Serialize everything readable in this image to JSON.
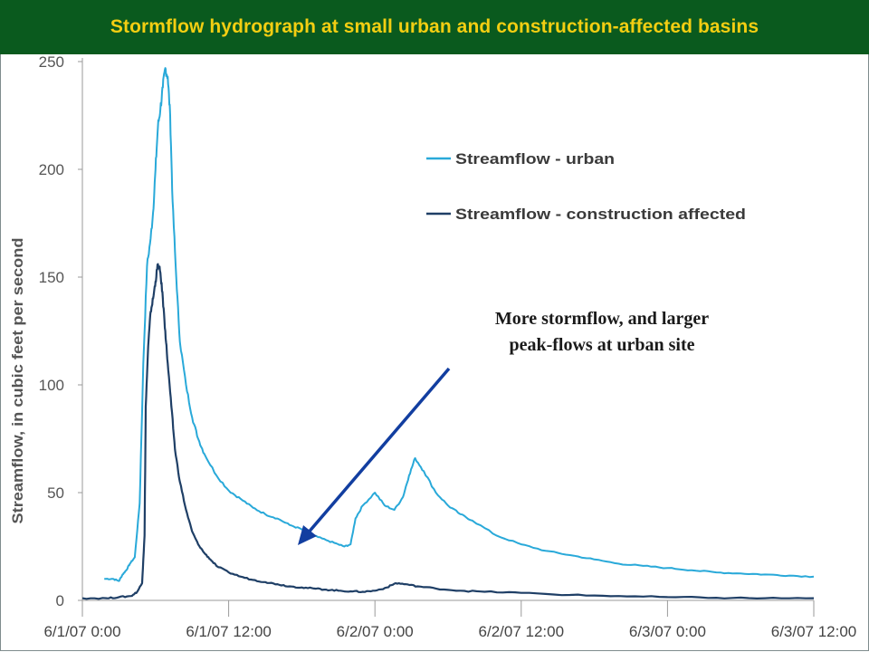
{
  "banner": {
    "title": "Stormflow hydrograph at small urban and construction-affected basins"
  },
  "colors": {
    "banner_bg": "#0a5a1e",
    "banner_text": "#f3ce12",
    "urban": "#29a9d9",
    "construction": "#1f3f66",
    "arrow": "#123ea0"
  },
  "annotation": {
    "line1": "More stormflow, and larger",
    "line2": "peak-flows at urban site"
  },
  "chart_data": {
    "type": "line",
    "title": "",
    "ylabel": "Streamflow, in cubic feet per second",
    "xlabel": "",
    "ylim": [
      0,
      250
    ],
    "yticks": [
      0,
      50,
      100,
      150,
      200,
      250
    ],
    "x_unit": "hours",
    "xlim": [
      0,
      60
    ],
    "xticks": [
      0,
      12,
      24,
      36,
      48,
      60
    ],
    "xtick_labels": [
      "6/1/07 0:00",
      "6/1/07 12:00",
      "6/2/07 0:00",
      "6/2/07 12:00",
      "6/3/07 0:00",
      "6/3/07 12:00"
    ],
    "grid": false,
    "legend_position": "top-right",
    "series": [
      {
        "name": "Streamflow - urban",
        "color": "#29a9d9",
        "x": [
          1.8,
          2.5,
          3.0,
          3.3,
          3.6,
          3.9,
          4.3,
          4.7,
          5.0,
          5.3,
          5.6,
          5.8,
          6.0,
          6.2,
          6.4,
          6.6,
          6.8,
          7.0,
          7.2,
          7.4,
          7.7,
          8.0,
          8.5,
          9.0,
          9.5,
          10,
          11,
          12,
          13,
          14,
          15,
          16,
          17,
          18,
          18.6,
          19,
          20,
          21,
          21.5,
          22,
          22.4,
          23,
          24,
          24.8,
          25.6,
          26.3,
          26.8,
          27.3,
          28,
          29,
          30,
          31,
          32,
          34,
          36,
          38,
          40,
          42,
          44,
          46,
          48,
          50,
          52,
          54,
          56,
          58,
          60
        ],
        "values": [
          10,
          10,
          9,
          12,
          14,
          17,
          20,
          45,
          110,
          155,
          168,
          180,
          200,
          220,
          228,
          238,
          247,
          243,
          225,
          185,
          150,
          120,
          100,
          85,
          75,
          68,
          58,
          51,
          47,
          43,
          40,
          38,
          35,
          33,
          30,
          30,
          28,
          26,
          25,
          26,
          38,
          44,
          50,
          44,
          42,
          48,
          58,
          66,
          60,
          50,
          44,
          40,
          37,
          30,
          26,
          23,
          21,
          19,
          17,
          16,
          15,
          14,
          13,
          12.5,
          12,
          11.5,
          11
        ]
      },
      {
        "name": "Streamflow - construction affected",
        "color": "#1f3f66",
        "x": [
          0,
          2,
          3,
          4,
          4.5,
          4.9,
          5.1,
          5.2,
          5.4,
          5.6,
          5.8,
          6.0,
          6.2,
          6.4,
          6.6,
          6.8,
          7.0,
          7.3,
          7.6,
          8.0,
          8.5,
          9.0,
          9.5,
          10,
          10.5,
          11,
          12,
          13,
          14,
          15,
          16,
          17,
          18,
          19,
          20,
          21,
          22,
          23,
          24,
          25,
          25.7,
          26.5,
          27.5,
          29,
          31,
          33,
          36,
          40,
          44,
          48,
          52,
          56,
          60
        ],
        "values": [
          1,
          1,
          1.5,
          2,
          4,
          8,
          30,
          90,
          118,
          134,
          140,
          148,
          156,
          152,
          140,
          125,
          110,
          90,
          70,
          55,
          42,
          32,
          26,
          22,
          19,
          16,
          13,
          11,
          9.5,
          8.5,
          7.5,
          6.5,
          6,
          5.5,
          5,
          4.5,
          4.2,
          4,
          4.5,
          6,
          8,
          7.5,
          6.5,
          5.5,
          4.5,
          4,
          3.5,
          2.5,
          2,
          1.5,
          1.2,
          1,
          1
        ]
      }
    ]
  }
}
